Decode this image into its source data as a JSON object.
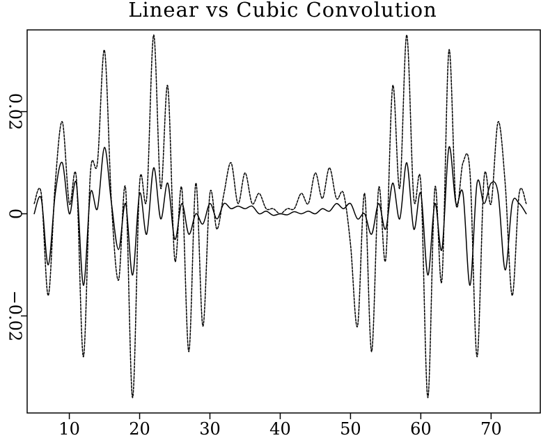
{
  "chart_data": {
    "type": "line",
    "title": "Linear vs Cubic Convolution",
    "xlabel": "",
    "ylabel": "",
    "xlim": [
      4,
      77
    ],
    "ylim": [
      -0.039,
      0.036
    ],
    "grid": false,
    "legend": "none",
    "x_ticks": [
      10,
      20,
      30,
      40,
      50,
      60,
      70
    ],
    "x_tick_labels": [
      "10",
      "20",
      "30",
      "40",
      "50",
      "60",
      "70"
    ],
    "y_ticks": [
      -0.02,
      0,
      0.02
    ],
    "y_tick_labels": [
      "−0.02",
      "0",
      "0.02"
    ],
    "y_tick_label_rotation": "rotated",
    "series": [
      {
        "line_style": "solid",
        "color": "#000000",
        "points": [
          [
            5,
            0.0
          ],
          [
            6,
            0.003
          ],
          [
            7,
            -0.01
          ],
          [
            8,
            0.004
          ],
          [
            9,
            0.01
          ],
          [
            10,
            0.0
          ],
          [
            11,
            0.006
          ],
          [
            12,
            -0.014
          ],
          [
            13,
            0.004
          ],
          [
            14,
            0.001
          ],
          [
            15,
            0.013
          ],
          [
            16,
            0.002
          ],
          [
            17,
            -0.007
          ],
          [
            18,
            0.002
          ],
          [
            19,
            -0.012
          ],
          [
            20,
            0.004
          ],
          [
            21,
            -0.004
          ],
          [
            22,
            0.009
          ],
          [
            23,
            -0.001
          ],
          [
            24,
            0.006
          ],
          [
            25,
            -0.005
          ],
          [
            26,
            0.002
          ],
          [
            27,
            -0.004
          ],
          [
            28,
            0.0
          ],
          [
            29,
            -0.002
          ],
          [
            30,
            0.002
          ],
          [
            31,
            -0.001
          ],
          [
            32,
            0.002
          ],
          [
            33,
            0.001
          ],
          [
            34,
            0.0015
          ],
          [
            35,
            0.001
          ],
          [
            36,
            0.0015
          ],
          [
            37,
            0.0
          ],
          [
            38,
            0.0005
          ],
          [
            39,
            -0.0003
          ],
          [
            40,
            0.0
          ],
          [
            41,
            -0.0002
          ],
          [
            42,
            0.0004
          ],
          [
            43,
            0.0
          ],
          [
            44,
            0.0005
          ],
          [
            45,
            0.0
          ],
          [
            46,
            0.001
          ],
          [
            47,
            0.0005
          ],
          [
            48,
            0.002
          ],
          [
            49,
            0.001
          ],
          [
            50,
            0.002
          ],
          [
            51,
            -0.001
          ],
          [
            52,
            0.0
          ],
          [
            53,
            -0.004
          ],
          [
            54,
            0.002
          ],
          [
            55,
            -0.003
          ],
          [
            56,
            0.006
          ],
          [
            57,
            -0.001
          ],
          [
            58,
            0.01
          ],
          [
            59,
            -0.003
          ],
          [
            60,
            0.004
          ],
          [
            61,
            -0.012
          ],
          [
            62,
            0.002
          ],
          [
            63,
            -0.007
          ],
          [
            64,
            0.013
          ],
          [
            65,
            0.002
          ],
          [
            66,
            0.004
          ],
          [
            67,
            -0.014
          ],
          [
            68,
            0.006
          ],
          [
            69,
            0.002
          ],
          [
            70,
            0.006
          ],
          [
            71,
            0.004
          ],
          [
            72,
            -0.011
          ],
          [
            73,
            0.002
          ],
          [
            74,
            0.002
          ],
          [
            75,
            0.0
          ]
        ]
      },
      {
        "line_style": "dashed",
        "color": "#000000",
        "points": [
          [
            5,
            0.002
          ],
          [
            6,
            0.004
          ],
          [
            7,
            -0.016
          ],
          [
            8,
            0.006
          ],
          [
            9,
            0.018
          ],
          [
            10,
            0.002
          ],
          [
            11,
            0.007
          ],
          [
            12,
            -0.028
          ],
          [
            13,
            0.008
          ],
          [
            14,
            0.01
          ],
          [
            15,
            0.032
          ],
          [
            16,
            0.002
          ],
          [
            17,
            -0.013
          ],
          [
            18,
            0.005
          ],
          [
            19,
            -0.036
          ],
          [
            20,
            0.006
          ],
          [
            21,
            0.003
          ],
          [
            22,
            0.035
          ],
          [
            23,
            0.005
          ],
          [
            24,
            0.025
          ],
          [
            25,
            -0.009
          ],
          [
            26,
            0.005
          ],
          [
            27,
            -0.027
          ],
          [
            28,
            0.006
          ],
          [
            29,
            -0.022
          ],
          [
            30,
            0.004
          ],
          [
            31,
            -0.003
          ],
          [
            32,
            0.004
          ],
          [
            33,
            0.01
          ],
          [
            34,
            0.002
          ],
          [
            35,
            0.008
          ],
          [
            36,
            0.002
          ],
          [
            37,
            0.004
          ],
          [
            38,
            0.001
          ],
          [
            39,
            0.001
          ],
          [
            40,
            0.0
          ],
          [
            41,
            0.001
          ],
          [
            42,
            0.001
          ],
          [
            43,
            0.004
          ],
          [
            44,
            0.002
          ],
          [
            45,
            0.008
          ],
          [
            46,
            0.003
          ],
          [
            47,
            0.009
          ],
          [
            48,
            0.003
          ],
          [
            49,
            0.004
          ],
          [
            50,
            -0.006
          ],
          [
            51,
            -0.022
          ],
          [
            52,
            0.004
          ],
          [
            53,
            -0.027
          ],
          [
            54,
            0.005
          ],
          [
            55,
            -0.009
          ],
          [
            56,
            0.025
          ],
          [
            57,
            0.005
          ],
          [
            58,
            0.035
          ],
          [
            59,
            0.003
          ],
          [
            60,
            0.006
          ],
          [
            61,
            -0.036
          ],
          [
            62,
            0.005
          ],
          [
            63,
            -0.013
          ],
          [
            64,
            0.032
          ],
          [
            65,
            0.002
          ],
          [
            66,
            0.01
          ],
          [
            67,
            0.008
          ],
          [
            68,
            -0.028
          ],
          [
            69,
            0.007
          ],
          [
            70,
            0.002
          ],
          [
            71,
            0.018
          ],
          [
            72,
            0.006
          ],
          [
            73,
            -0.016
          ],
          [
            74,
            0.004
          ],
          [
            75,
            0.002
          ]
        ]
      }
    ]
  }
}
